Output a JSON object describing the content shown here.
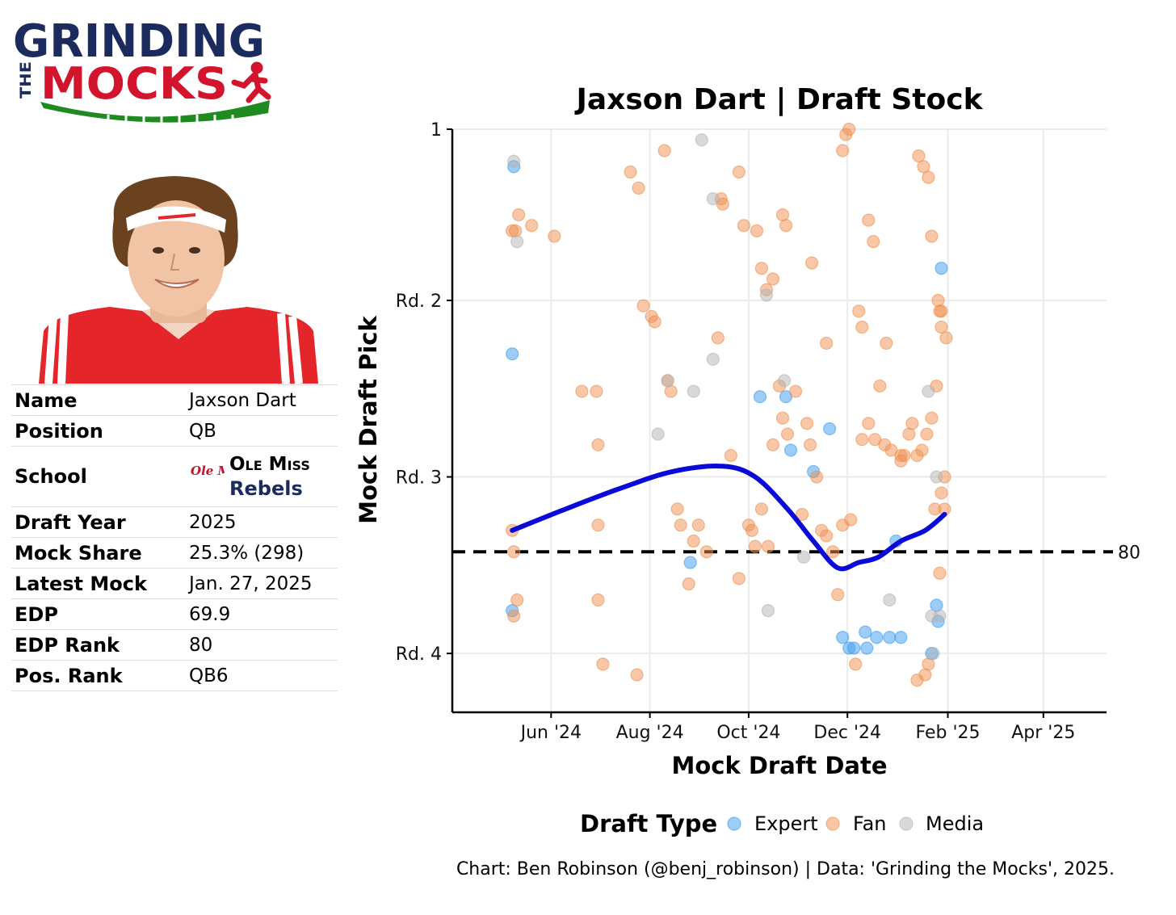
{
  "logo": {
    "line1": "GRINDING",
    "side": "THE",
    "line2": "MOCKS",
    "colors": {
      "navy": "#1c2b5e",
      "red": "#d2152c",
      "green": "#1f8a1f"
    }
  },
  "player_photo": {
    "icon": "player-headshot",
    "jersey_color": "#e4262a"
  },
  "info": {
    "rows": [
      {
        "label": "Name",
        "value": "Jaxson Dart"
      },
      {
        "label": "Position",
        "value": "QB"
      },
      {
        "label": "School",
        "value": ""
      },
      {
        "label": "Draft Year",
        "value": "2025"
      },
      {
        "label": "Mock Share",
        "value": "25.3% (298)"
      },
      {
        "label": "Latest Mock",
        "value": "Jan. 27, 2025"
      },
      {
        "label": "EDP",
        "value": "69.9"
      },
      {
        "label": "EDP Rank",
        "value": "80"
      },
      {
        "label": "Pos. Rank",
        "value": "QB6"
      }
    ],
    "school": {
      "line1": "Ole Miss",
      "line2": "Rebels",
      "logo_text": "Ole Miss",
      "color": "#c8102e"
    }
  },
  "chart_data": {
    "type": "scatter",
    "title": "Jaxson Dart | Draft Stock",
    "xlabel": "Mock Draft Date",
    "ylabel": "Mock Draft Pick",
    "x_type": "date",
    "xlim": [
      "2024-04-01",
      "2025-05-10"
    ],
    "ylim": [
      110,
      1
    ],
    "x_ticks": [
      {
        "date": "2024-06-01",
        "label": "Jun '24"
      },
      {
        "date": "2024-08-01",
        "label": "Aug '24"
      },
      {
        "date": "2024-10-01",
        "label": "Oct '24"
      },
      {
        "date": "2024-12-01",
        "label": "Dec '24"
      },
      {
        "date": "2025-02-01",
        "label": "Feb '25"
      },
      {
        "date": "2025-04-01",
        "label": "Apr '25"
      }
    ],
    "y_ticks": [
      {
        "value": 1,
        "label": "1"
      },
      {
        "value": 33,
        "label": "Rd. 2"
      },
      {
        "value": 66,
        "label": "Rd. 3"
      },
      {
        "value": 99,
        "label": "Rd. 4"
      }
    ],
    "grid": true,
    "reference_line": {
      "value": 80,
      "label": "80",
      "style": "dashed"
    },
    "legend": {
      "title": "Draft Type",
      "position": "bottom",
      "entries": [
        {
          "name": "Expert",
          "color": "#3b9cf0"
        },
        {
          "name": "Fan",
          "color": "#ef8f4f"
        },
        {
          "name": "Media",
          "color": "#b4b4b4"
        }
      ]
    },
    "series": [
      {
        "name": "Expert",
        "points": [
          [
            "2024-05-09",
            8
          ],
          [
            "2024-05-08",
            43
          ],
          [
            "2024-05-08",
            91
          ],
          [
            "2024-08-26",
            82
          ],
          [
            "2024-10-08",
            51
          ],
          [
            "2024-10-24",
            51
          ],
          [
            "2024-10-27",
            61
          ],
          [
            "2024-11-10",
            65
          ],
          [
            "2024-11-20",
            57
          ],
          [
            "2024-11-28",
            96
          ],
          [
            "2024-12-02",
            98
          ],
          [
            "2024-12-05",
            98
          ],
          [
            "2024-12-13",
            98
          ],
          [
            "2024-12-12",
            95
          ],
          [
            "2024-12-19",
            96
          ],
          [
            "2024-12-27",
            96
          ],
          [
            "2025-01-03",
            96
          ],
          [
            "2024-12-31",
            78
          ],
          [
            "2025-01-22",
            99
          ],
          [
            "2025-01-25",
            90
          ],
          [
            "2025-01-26",
            93
          ],
          [
            "2025-01-28",
            27
          ]
        ]
      },
      {
        "name": "Fan",
        "points": [
          [
            "2024-05-08",
            20
          ],
          [
            "2024-05-10",
            20
          ],
          [
            "2024-05-12",
            17
          ],
          [
            "2024-05-20",
            19
          ],
          [
            "2024-06-03",
            21
          ],
          [
            "2024-05-08",
            76
          ],
          [
            "2024-05-09",
            80
          ],
          [
            "2024-05-11",
            89
          ],
          [
            "2024-05-09",
            92
          ],
          [
            "2024-06-20",
            50
          ],
          [
            "2024-06-29",
            50
          ],
          [
            "2024-06-30",
            60
          ],
          [
            "2024-06-30",
            75
          ],
          [
            "2024-06-30",
            89
          ],
          [
            "2024-07-03",
            101
          ],
          [
            "2024-07-24",
            103
          ],
          [
            "2024-07-20",
            9
          ],
          [
            "2024-07-25",
            12
          ],
          [
            "2024-07-28",
            34
          ],
          [
            "2024-08-02",
            36
          ],
          [
            "2024-08-04",
            37
          ],
          [
            "2024-08-10",
            5
          ],
          [
            "2024-08-12",
            48
          ],
          [
            "2024-08-14",
            50
          ],
          [
            "2024-08-18",
            72
          ],
          [
            "2024-08-20",
            75
          ],
          [
            "2024-08-25",
            86
          ],
          [
            "2024-08-28",
            78
          ],
          [
            "2024-08-31",
            75
          ],
          [
            "2024-09-05",
            80
          ],
          [
            "2024-09-12",
            40
          ],
          [
            "2024-09-20",
            62
          ],
          [
            "2024-09-25",
            85
          ],
          [
            "2024-10-01",
            75
          ],
          [
            "2024-10-03",
            76
          ],
          [
            "2024-10-05",
            79
          ],
          [
            "2024-10-09",
            72
          ],
          [
            "2024-10-13",
            79
          ],
          [
            "2024-10-16",
            60
          ],
          [
            "2024-10-20",
            49
          ],
          [
            "2024-10-22",
            55
          ],
          [
            "2024-10-25",
            58
          ],
          [
            "2024-10-30",
            50
          ],
          [
            "2024-11-03",
            73
          ],
          [
            "2024-11-06",
            56
          ],
          [
            "2024-11-08",
            60
          ],
          [
            "2024-11-12",
            66
          ],
          [
            "2024-11-15",
            76
          ],
          [
            "2024-11-18",
            77
          ],
          [
            "2024-11-22",
            80
          ],
          [
            "2024-11-25",
            88
          ],
          [
            "2024-11-28",
            75
          ],
          [
            "2024-12-03",
            74
          ],
          [
            "2024-12-06",
            101
          ],
          [
            "2024-12-08",
            35
          ],
          [
            "2024-12-10",
            59
          ],
          [
            "2024-12-14",
            56
          ],
          [
            "2024-12-18",
            59
          ],
          [
            "2024-12-21",
            49
          ],
          [
            "2024-12-24",
            60
          ],
          [
            "2024-12-28",
            61
          ],
          [
            "2025-01-03",
            62
          ],
          [
            "2025-01-05",
            62
          ],
          [
            "2025-01-08",
            58
          ],
          [
            "2025-01-10",
            56
          ],
          [
            "2025-01-13",
            62
          ],
          [
            "2025-01-16",
            61
          ],
          [
            "2025-01-19",
            58
          ],
          [
            "2025-01-22",
            55
          ],
          [
            "2025-01-25",
            49
          ],
          [
            "2025-01-27",
            35
          ],
          [
            "2025-01-28",
            38
          ],
          [
            "2025-01-30",
            72
          ],
          [
            "2024-09-14",
            14
          ],
          [
            "2024-09-15",
            15
          ],
          [
            "2024-09-25",
            9
          ],
          [
            "2024-09-28",
            19
          ],
          [
            "2024-10-06",
            20
          ],
          [
            "2024-10-09",
            27
          ],
          [
            "2024-10-12",
            31
          ],
          [
            "2024-10-16",
            29
          ],
          [
            "2024-10-22",
            17
          ],
          [
            "2024-10-24",
            19
          ],
          [
            "2024-11-09",
            26
          ],
          [
            "2024-11-18",
            41
          ],
          [
            "2024-11-28",
            5
          ],
          [
            "2024-11-30",
            2
          ],
          [
            "2024-12-02",
            1
          ],
          [
            "2024-12-10",
            38
          ],
          [
            "2024-12-14",
            18
          ],
          [
            "2024-12-17",
            22
          ],
          [
            "2024-12-25",
            41
          ],
          [
            "2025-01-03",
            63
          ],
          [
            "2025-01-14",
            6
          ],
          [
            "2025-01-17",
            8
          ],
          [
            "2025-01-20",
            10
          ],
          [
            "2025-01-22",
            21
          ],
          [
            "2025-01-26",
            33
          ],
          [
            "2025-01-28",
            35
          ],
          [
            "2025-01-31",
            40
          ],
          [
            "2025-01-24",
            72
          ],
          [
            "2025-01-28",
            69
          ],
          [
            "2025-01-30",
            66
          ],
          [
            "2025-01-27",
            84
          ],
          [
            "2025-01-20",
            101
          ],
          [
            "2025-01-18",
            103
          ],
          [
            "2025-01-13",
            104
          ]
        ]
      },
      {
        "name": "Media",
        "points": [
          [
            "2024-05-09",
            7
          ],
          [
            "2024-05-11",
            22
          ],
          [
            "2024-09-02",
            3
          ],
          [
            "2024-09-09",
            14
          ],
          [
            "2024-08-28",
            50
          ],
          [
            "2024-09-09",
            44
          ],
          [
            "2024-08-06",
            58
          ],
          [
            "2024-08-12",
            48
          ],
          [
            "2024-10-12",
            32
          ],
          [
            "2024-10-23",
            48
          ],
          [
            "2024-11-04",
            81
          ],
          [
            "2024-12-27",
            89
          ],
          [
            "2025-01-20",
            50
          ],
          [
            "2025-01-22",
            92
          ],
          [
            "2025-01-27",
            92
          ],
          [
            "2025-01-23",
            99
          ],
          [
            "2025-01-25",
            66
          ],
          [
            "2024-10-13",
            91
          ]
        ]
      },
      {
        "name": "Trend",
        "points": [
          [
            "2024-05-08",
            76
          ],
          [
            "2024-06-10",
            72
          ],
          [
            "2024-07-15",
            68
          ],
          [
            "2024-08-15",
            65
          ],
          [
            "2024-09-15",
            64
          ],
          [
            "2024-10-05",
            66
          ],
          [
            "2024-10-25",
            72
          ],
          [
            "2024-11-10",
            78
          ],
          [
            "2024-11-25",
            83
          ],
          [
            "2024-12-08",
            82
          ],
          [
            "2024-12-20",
            81
          ],
          [
            "2025-01-03",
            78
          ],
          [
            "2025-01-18",
            76
          ],
          [
            "2025-01-30",
            73
          ]
        ]
      }
    ]
  },
  "caption": "Chart: Ben Robinson (@benj_robinson) | Data: 'Grinding the Mocks', 2025."
}
